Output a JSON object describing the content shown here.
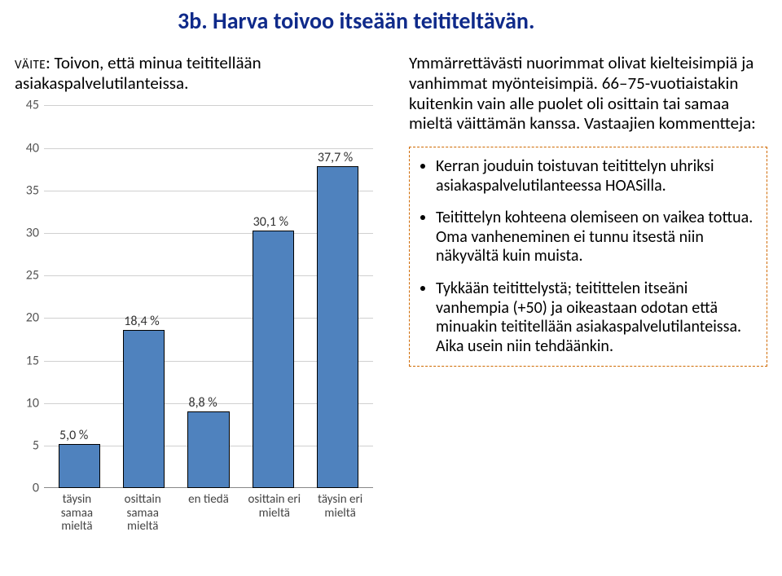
{
  "title": "3b. Harva toivoo  itseään teititeltävän.",
  "claim_prefix": "Väite",
  "claim_text": ": Toivon, että minua teititellään asiakaspalvelutilanteissa.",
  "intro_text": "Ymmärrettävästi nuorimmat olivat kielteisimpiä ja vanhimmat myönteisimpiä. 66–75-vuotiaistakin kuitenkin vain alle puolet oli osittain tai samaa mieltä väittämän kanssa. Vastaajien kommentteja:",
  "bullets": [
    "Kerran jouduin toistuvan teitittelyn uhriksi asiakaspalvelutilanteessa HOASilla.",
    "Teitittelyn kohteena olemiseen on vaikea tottua. Oma vanheneminen ei tunnu itsestä niin näkyvältä kuin muista.",
    "Tykkään teitittelystä; teitittelen itseäni vanhempia (+50) ja oikeastaan odotan että minuakin teititellään asiakaspalvelutilanteissa. Aika usein niin tehdäänkin."
  ],
  "chart": {
    "type": "bar",
    "categories": [
      "täysin samaa mieltä",
      "osittain samaa mieltä",
      "en tiedä",
      "osittain eri mieltä",
      "täysin eri mieltä"
    ],
    "values": [
      5.0,
      18.4,
      8.8,
      30.1,
      37.7
    ],
    "value_labels": [
      "5,0 %",
      "18,4 %",
      "8,8 %",
      "30,1 %",
      "37,7 %"
    ],
    "bar_fill": "#4f82be",
    "bar_border": "#000000",
    "ymin": 0,
    "ymax": 45,
    "ytick_step": 5,
    "grid_color": "#d0d0d0",
    "label_fontsize": 16
  }
}
